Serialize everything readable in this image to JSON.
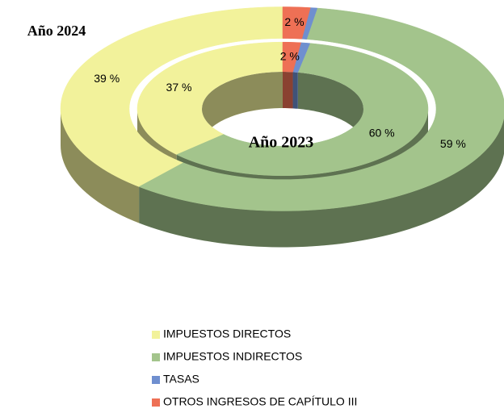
{
  "chart_data": {
    "type": "pie",
    "donut": true,
    "categories": [
      "IMPUESTOS DIRECTOS",
      "IMPUESTOS INDIRECTOS",
      "TASAS",
      "OTROS INGRESOS DE CAPÍTULO III"
    ],
    "colors": [
      "#f2f29b",
      "#a3c48c",
      "#6f8fcf",
      "#ee7055"
    ],
    "series": [
      {
        "name": "Año 2024",
        "values": [
          39,
          59,
          0.5,
          2
        ],
        "value_labels": [
          "39 %",
          "59 %",
          null,
          "2 %"
        ]
      },
      {
        "name": "Año 2023",
        "values": [
          37,
          60,
          1,
          2
        ],
        "value_labels": [
          "37 %",
          "60 %",
          null,
          "2 %"
        ]
      }
    ]
  }
}
